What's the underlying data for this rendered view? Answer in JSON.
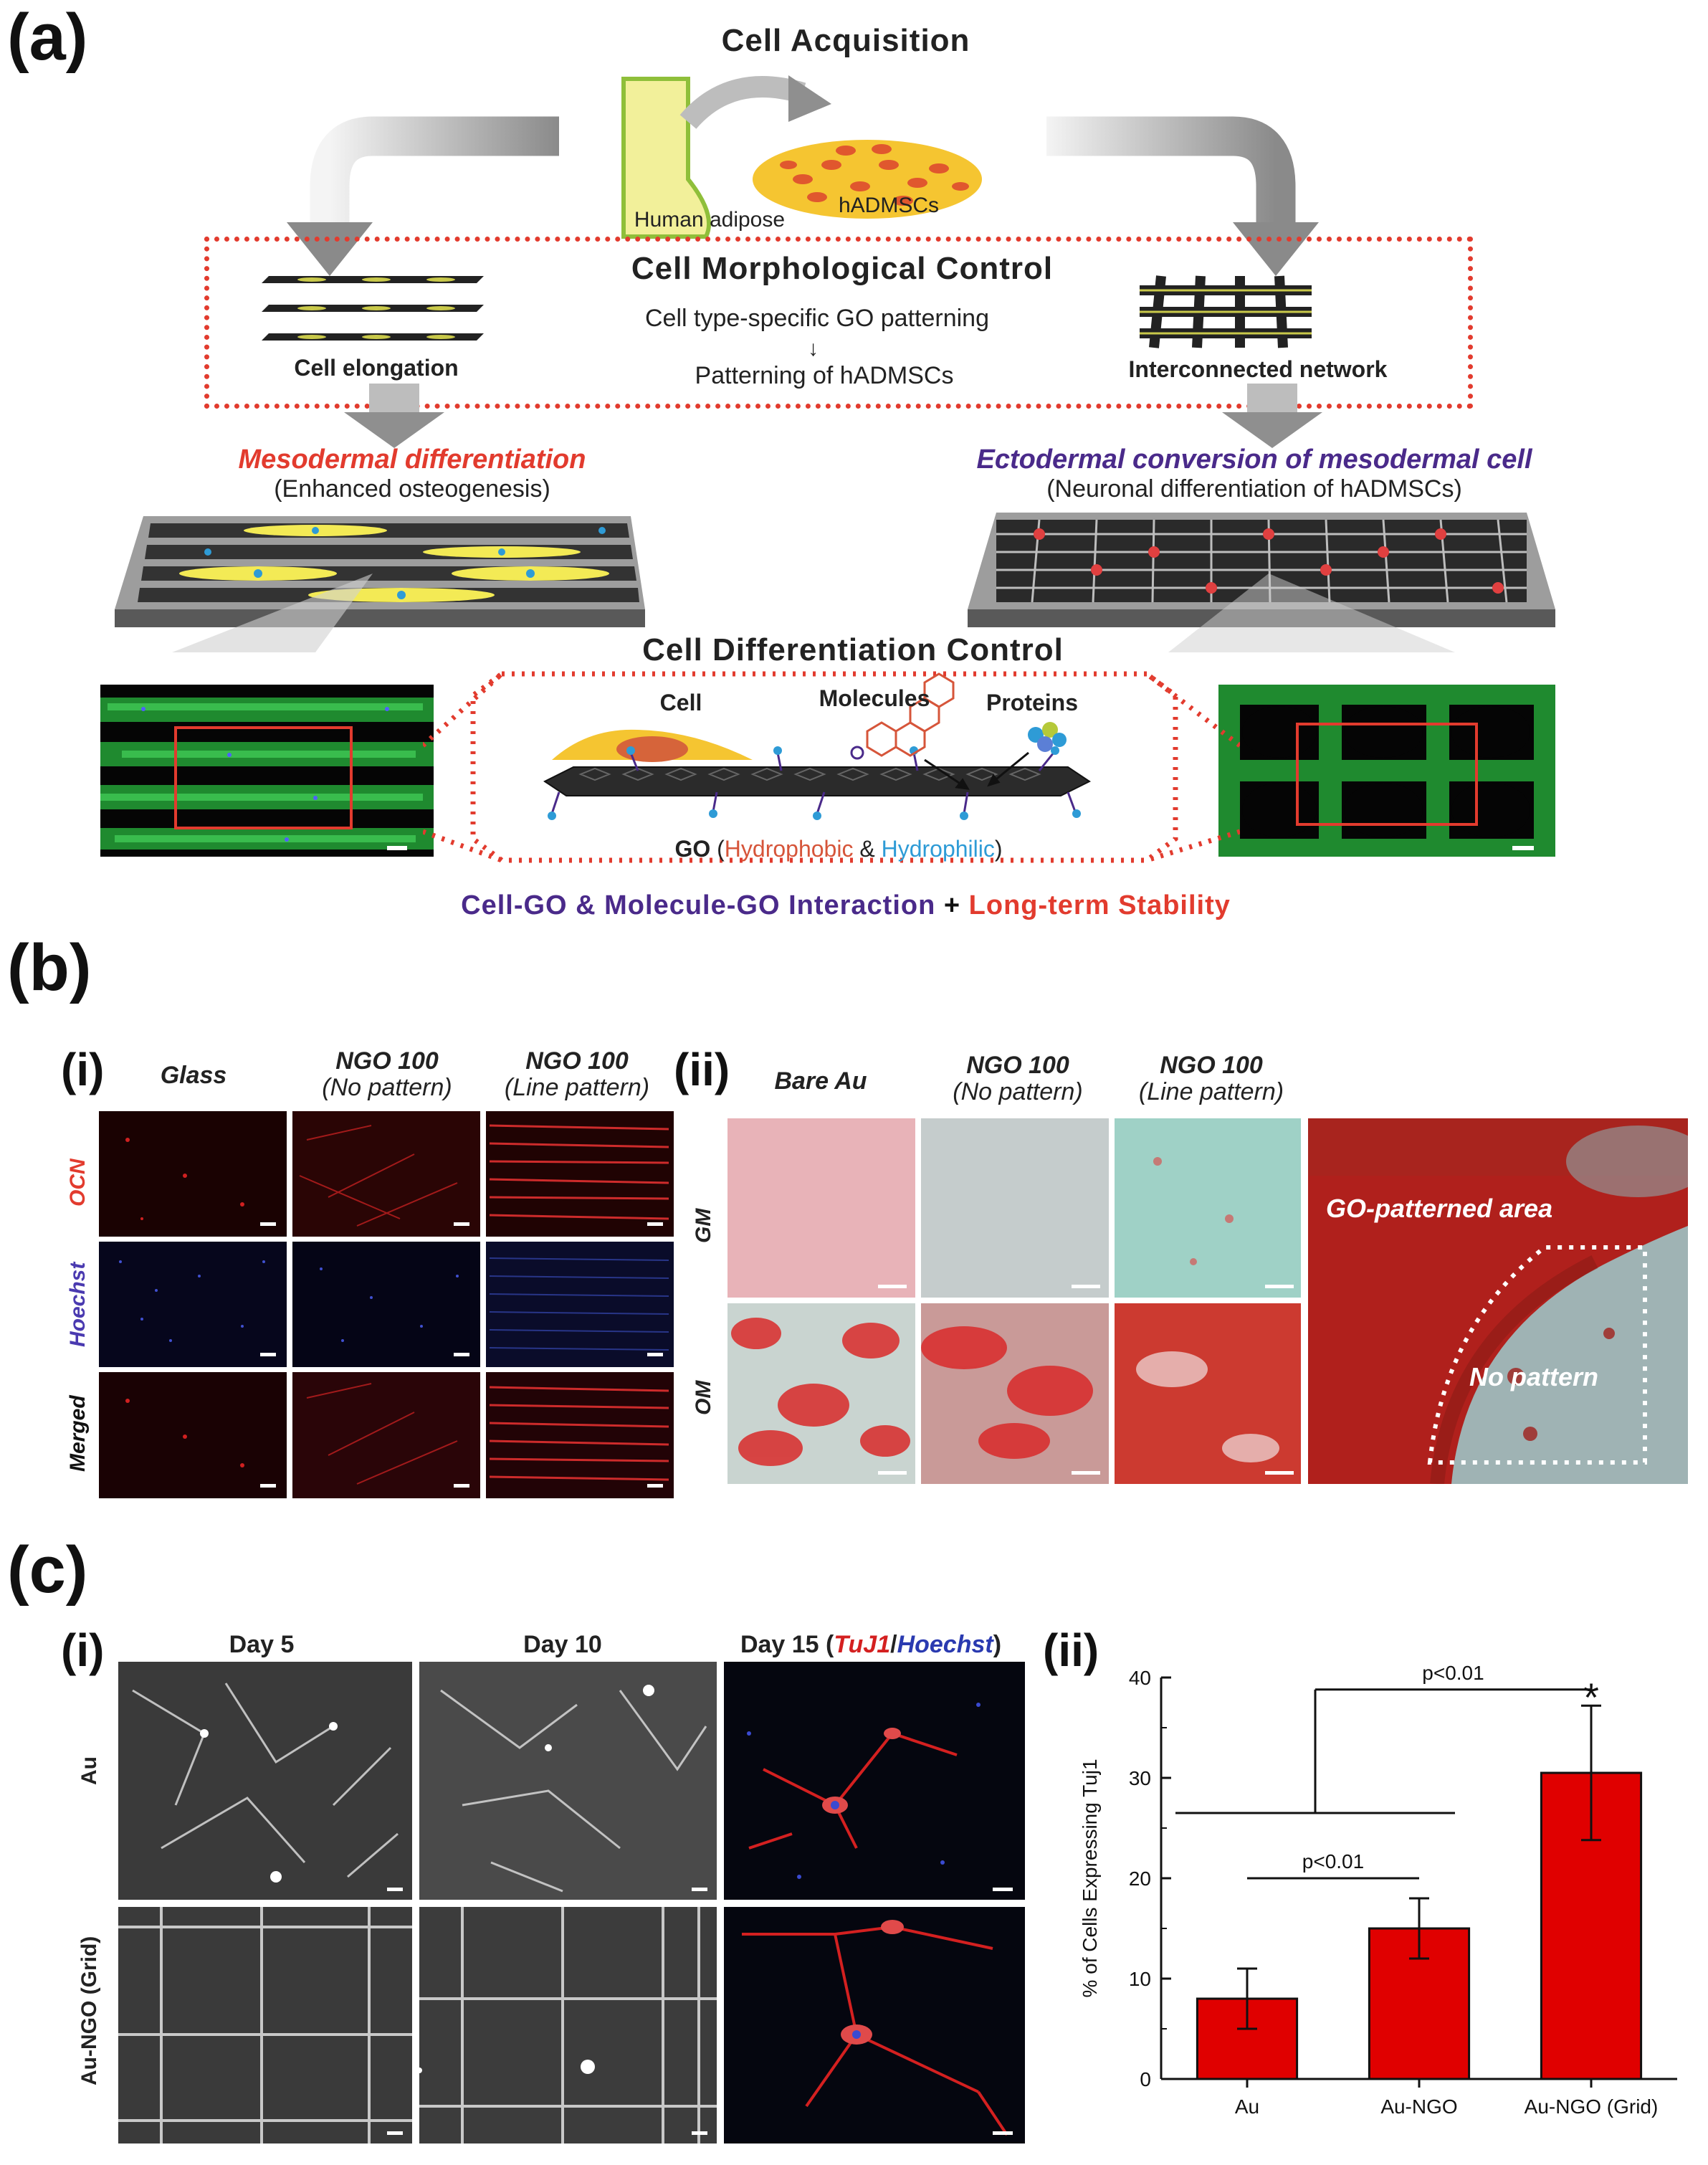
{
  "panel_a": {
    "letter": "(a)",
    "title": "Cell Acquisition",
    "human_adipose": "Human adipose",
    "hadmscs": "hADMSCs",
    "morph_title": "Cell Morphological Control",
    "morph_line1": "Cell type-specific GO patterning",
    "morph_line2": "Patterning of hADMSCs",
    "cell_elongation": "Cell elongation",
    "interconnected": "Interconnected network",
    "meso_title": "Mesodermal differentiation",
    "meso_sub": "(Enhanced osteogenesis)",
    "ecto_title": "Ectodermal conversion of mesodermal cell",
    "ecto_sub": "(Neuronal differentiation of hADMSCs)",
    "diff_title": "Cell Differentiation Control",
    "cell": "Cell",
    "molecules": "Molecules",
    "proteins": "Proteins",
    "go_label": "GO",
    "go_open": " (",
    "hydrophobic": "Hydrophobic",
    "amp": " & ",
    "hydrophilic": "Hydrophilic",
    "go_close": ")",
    "bottom_purple": "Cell-GO & Molecule-GO Interaction",
    "bottom_plus": " + ",
    "bottom_red": "Long-term Stability",
    "colors": {
      "red": "#e23b2e",
      "purple": "#4a2a8a",
      "blue": "#2e9bd6",
      "green": "#39c24a"
    }
  },
  "panel_b": {
    "letter": "(b)",
    "sub_i": "(i)",
    "sub_ii": "(ii)",
    "i_cols": [
      "Glass",
      "NGO 100",
      "NGO 100"
    ],
    "i_cols_sub": [
      "",
      "(No pattern)",
      "(Line pattern)"
    ],
    "i_rows": [
      "OCN",
      "Hoechst",
      "Merged"
    ],
    "ii_cols": [
      "Bare Au",
      "NGO 100",
      "NGO 100"
    ],
    "ii_cols_sub": [
      "",
      "(No pattern)",
      "(Line pattern)"
    ],
    "ii_rows": [
      "GM",
      "OM"
    ],
    "go_patterned_area": "GO-patterned area",
    "no_pattern": "No pattern"
  },
  "panel_c": {
    "letter": "(c)",
    "sub_i": "(i)",
    "sub_ii": "(ii)",
    "cols": [
      "Day 5",
      "Day 10"
    ],
    "day15_prefix": "Day 15 (",
    "day15_tuj": "TuJ1",
    "day15_slash": "/",
    "day15_hoechst": "Hoechst",
    "day15_suffix": ")",
    "rows": [
      "Au",
      "Au-NGO (Grid)"
    ],
    "sig1": "p<0.01",
    "sig2": "p<0.01",
    "star": "*"
  },
  "chart_data": {
    "type": "bar",
    "categories": [
      "Au",
      "Au-NGO",
      "Au-NGO (Grid)"
    ],
    "values": [
      8,
      15,
      30.5
    ],
    "errors": [
      3,
      3,
      6.7
    ],
    "ylabel": "% of Cells Expressing Tuj1",
    "ylim": [
      0,
      40
    ],
    "yticks": [
      "0",
      "10",
      "20",
      "30",
      "40"
    ],
    "bar_color": "#e00000",
    "grid": false
  }
}
